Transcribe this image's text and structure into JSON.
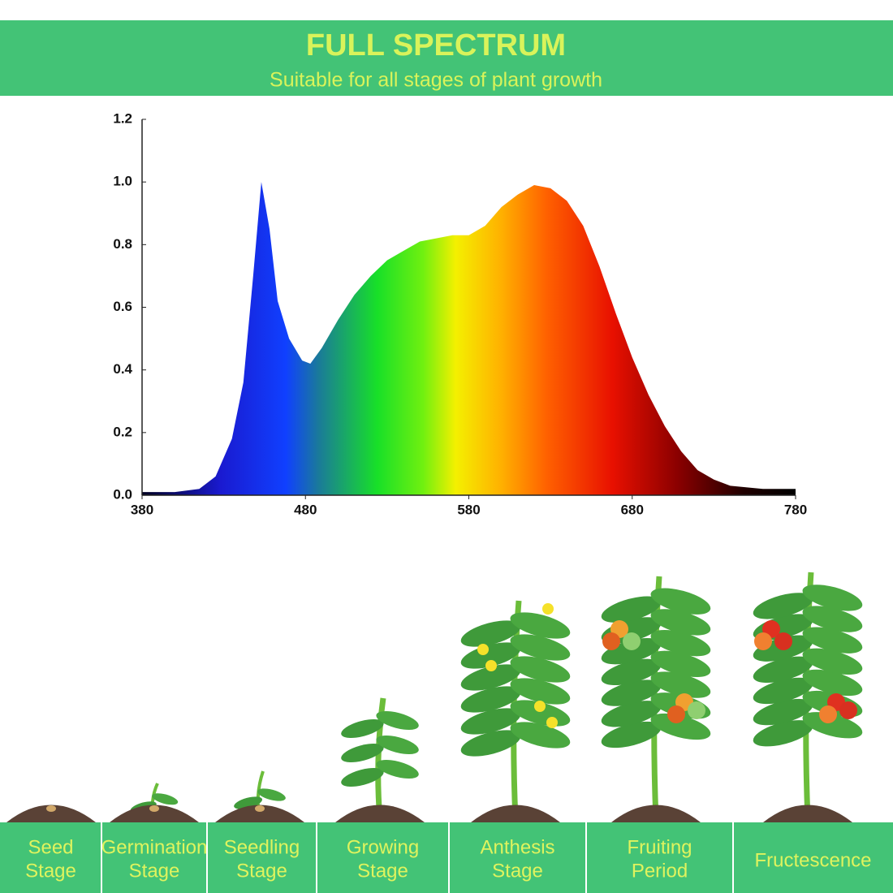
{
  "header": {
    "title": "FULL SPECTRUM",
    "subtitle": "Suitable for all stages of plant growth"
  },
  "chart_data": {
    "type": "area",
    "x": [
      380,
      400,
      415,
      425,
      435,
      442,
      448,
      453,
      458,
      463,
      470,
      478,
      483,
      490,
      500,
      510,
      520,
      530,
      540,
      550,
      560,
      570,
      580,
      590,
      600,
      610,
      620,
      630,
      640,
      650,
      660,
      670,
      680,
      690,
      700,
      710,
      720,
      730,
      740,
      760,
      780
    ],
    "values": [
      0.01,
      0.01,
      0.02,
      0.06,
      0.18,
      0.36,
      0.7,
      1.0,
      0.85,
      0.62,
      0.5,
      0.43,
      0.42,
      0.47,
      0.56,
      0.64,
      0.7,
      0.75,
      0.78,
      0.81,
      0.82,
      0.83,
      0.83,
      0.86,
      0.92,
      0.96,
      0.99,
      0.98,
      0.94,
      0.86,
      0.73,
      0.58,
      0.44,
      0.32,
      0.22,
      0.14,
      0.08,
      0.05,
      0.03,
      0.02,
      0.02
    ],
    "xlim": [
      380,
      780
    ],
    "ylim": [
      0,
      1.2
    ],
    "xticks": [
      380,
      480,
      580,
      680,
      780
    ],
    "yticks": [
      {
        "value": 0,
        "label": "0.0"
      },
      0.2,
      0.4,
      0.6,
      0.8,
      {
        "value": 1,
        "label": "1.0"
      },
      1.2
    ]
  },
  "stages": [
    [
      "Seed",
      "Stage"
    ],
    [
      "Germination",
      "Stage"
    ],
    [
      "Seedling",
      "Stage"
    ],
    [
      "Growing",
      "Stage"
    ],
    [
      "Anthesis",
      "Stage"
    ],
    [
      "Fruiting",
      "Period"
    ],
    [
      "Fructescence"
    ]
  ]
}
